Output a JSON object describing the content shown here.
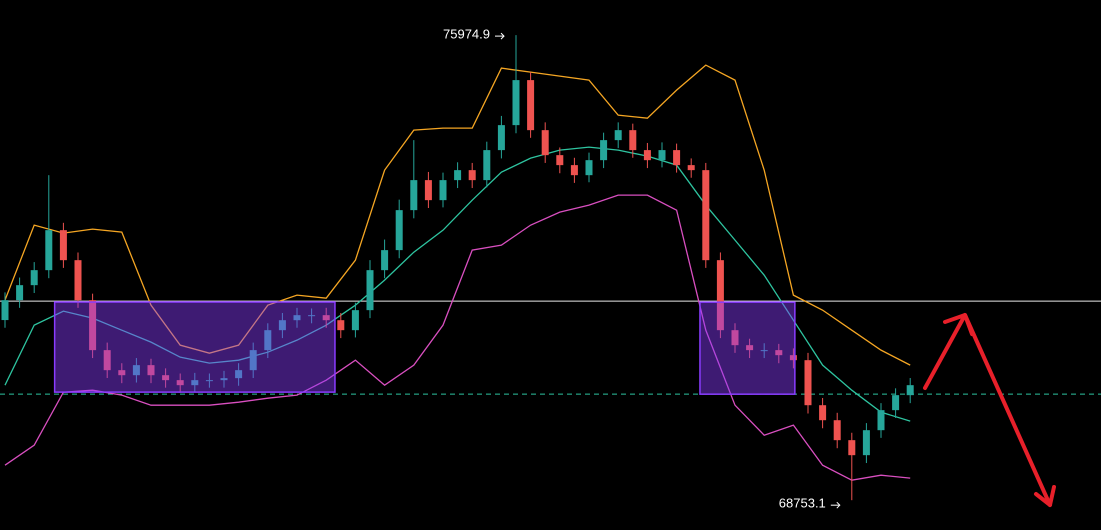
{
  "chart_data": {
    "type": "candlestick",
    "ylim": [
      68290,
      76520
    ],
    "up_color": "#26a69a",
    "down_color": "#ef5350",
    "open": [
      71550,
      71859,
      72092,
      72325,
      72946,
      72480,
      71859,
      71083,
      70772,
      70694,
      70850,
      70694,
      70617,
      70539,
      70617,
      70617,
      70648,
      70772,
      71083,
      71393,
      71548,
      71626,
      71626,
      71548,
      71393,
      71704,
      72325,
      72636,
      73257,
      73723,
      73412,
      73723,
      73878,
      73723,
      74189,
      74577,
      75276,
      74499,
      74111,
      73956,
      73800,
      74033,
      74344,
      74499,
      74189,
      74033,
      74189,
      73956,
      73878,
      72480,
      71393,
      71160,
      71083,
      71083,
      71005,
      70927,
      70228,
      69995,
      69685,
      69452,
      69840,
      70151,
      70384
    ],
    "high": [
      71980,
      72210,
      72450,
      73800,
      73060,
      72600,
      71960,
      71200,
      70880,
      70960,
      70950,
      70800,
      70720,
      70730,
      70720,
      70760,
      70880,
      71200,
      71500,
      71660,
      71740,
      71730,
      71740,
      71660,
      71820,
      72480,
      72800,
      73420,
      74344,
      73850,
      73840,
      74000,
      73990,
      74320,
      74720,
      75974.9,
      75400,
      74620,
      74230,
      74070,
      74150,
      74460,
      74620,
      74600,
      74300,
      74310,
      74290,
      74060,
      73990,
      72600,
      71500,
      71260,
      71190,
      71180,
      71110,
      71040,
      70340,
      70110,
      69800,
      69950,
      70260,
      70490,
      70650
    ],
    "low": [
      71430,
      71740,
      71970,
      72200,
      72360,
      71740,
      70960,
      70650,
      70570,
      70580,
      70570,
      70500,
      70420,
      70430,
      70500,
      70500,
      70530,
      70650,
      70960,
      71270,
      71430,
      71500,
      71430,
      71270,
      71280,
      71580,
      72200,
      72510,
      73130,
      73290,
      73300,
      73600,
      73600,
      73610,
      74060,
      74450,
      74380,
      73990,
      73830,
      73680,
      73690,
      73910,
      74220,
      74070,
      73910,
      73920,
      73840,
      73760,
      72360,
      71270,
      71040,
      70960,
      70960,
      70880,
      70800,
      70100,
      69870,
      69560,
      68753.1,
      69330,
      69720,
      70030,
      70260
    ],
    "close": [
      71859,
      72092,
      72325,
      72946,
      72480,
      71859,
      71083,
      70772,
      70694,
      70850,
      70694,
      70617,
      70539,
      70617,
      70617,
      70648,
      70772,
      71083,
      71393,
      71548,
      71626,
      71626,
      71548,
      71393,
      71704,
      72325,
      72636,
      73257,
      73723,
      73412,
      73723,
      73878,
      73723,
      74189,
      74577,
      75276,
      74499,
      74111,
      73956,
      73800,
      74033,
      74344,
      74499,
      74189,
      74033,
      74189,
      73956,
      73878,
      72480,
      71393,
      71160,
      71083,
      71083,
      71005,
      70927,
      70228,
      69995,
      69685,
      69452,
      69840,
      70151,
      70384,
      70539
    ],
    "series": [
      {
        "color": "#f5a623",
        "x": [
          0,
          2,
          4,
          6,
          8,
          10,
          12,
          14,
          16,
          18,
          20,
          22,
          24,
          26,
          28,
          30,
          32,
          34,
          36,
          38,
          40,
          42,
          44,
          46,
          48,
          50,
          52,
          54,
          56,
          58,
          60,
          62
        ],
        "values": [
          71859,
          73024,
          72900,
          72962,
          72915,
          71781,
          71160,
          71036,
          71160,
          71781,
          71937,
          71890,
          72480,
          73878,
          74499,
          74530,
          74530,
          75462,
          75400,
          75338,
          75276,
          74732,
          74685,
          75120,
          75509,
          75276,
          73878,
          71937,
          71704,
          71393,
          71083,
          70850
        ]
      },
      {
        "color": "#2ec4a0",
        "x": [
          0,
          2,
          4,
          6,
          8,
          10,
          12,
          14,
          16,
          18,
          20,
          22,
          24,
          26,
          28,
          30,
          32,
          34,
          36,
          38,
          40,
          42,
          44,
          46,
          48,
          50,
          52,
          54,
          56,
          58,
          60,
          62
        ],
        "values": [
          70539,
          71471,
          71688,
          71580,
          71393,
          71207,
          70974,
          70881,
          70927,
          71051,
          71238,
          71471,
          71781,
          72170,
          72604,
          72946,
          73412,
          73847,
          74064,
          74189,
          74235,
          74189,
          74095,
          73956,
          73334,
          72791,
          72247,
          71548,
          70850,
          70461,
          70120,
          69980
        ]
      },
      {
        "color": "#d94fc0",
        "x": [
          0,
          2,
          4,
          6,
          8,
          10,
          12,
          14,
          16,
          18,
          20,
          22,
          24,
          26,
          28,
          30,
          32,
          34,
          36,
          38,
          40,
          42,
          44,
          46,
          48,
          50,
          52,
          54,
          56,
          58,
          60,
          62
        ],
        "values": [
          69296,
          69607,
          70430,
          70461,
          70384,
          70228,
          70228,
          70228,
          70275,
          70337,
          70384,
          70617,
          70927,
          70539,
          70850,
          71471,
          72636,
          72713,
          73024,
          73226,
          73334,
          73490,
          73490,
          73257,
          71393,
          70228,
          69762,
          69918,
          69296,
          69064,
          69141,
          69095
        ]
      }
    ],
    "levels": [
      {
        "value": 71844,
        "color": "#e8e8e8",
        "dashed": false
      },
      {
        "value": 70400,
        "color": "#2ec4a0",
        "dashed": true
      }
    ],
    "zones": [
      {
        "from": 3.4,
        "to": 22.6,
        "low": 70431,
        "high": 71830
      },
      {
        "from": 47.6,
        "to": 54.1,
        "low": 70399,
        "high": 71828
      }
    ],
    "zone_color": "#8a3cff"
  }
}
